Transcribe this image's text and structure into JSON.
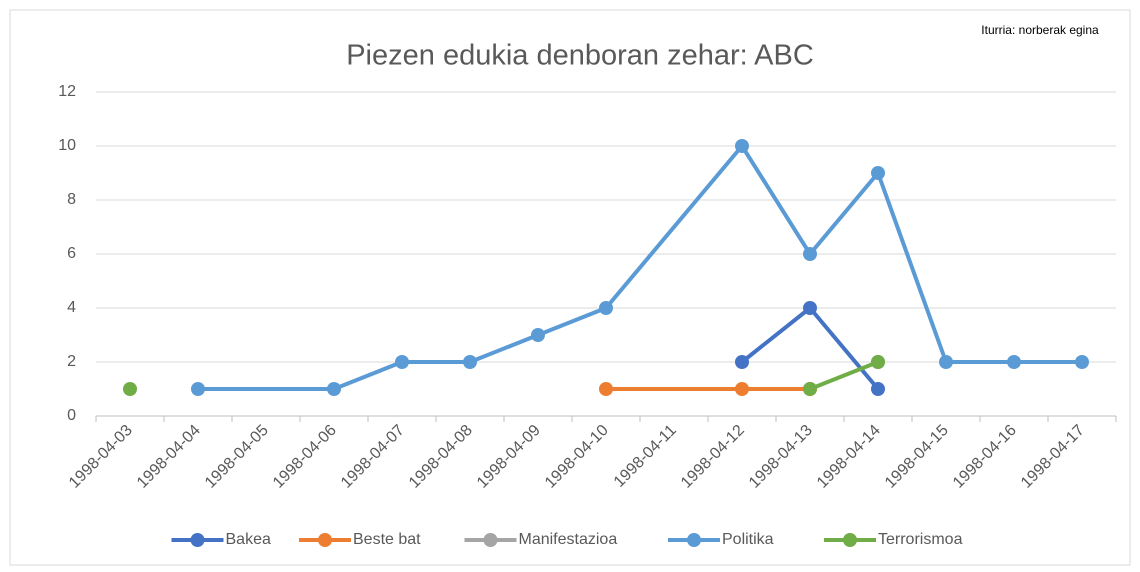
{
  "chart_data": {
    "type": "line",
    "title": "Piezen edukia denboran zehar: ABC",
    "note": "Iturria: norberak egina",
    "categories": [
      "1998-04-03",
      "1998-04-04",
      "1998-04-05",
      "1998-04-06",
      "1998-04-07",
      "1998-04-08",
      "1998-04-09",
      "1998-04-10",
      "1998-04-11",
      "1998-04-12",
      "1998-04-13",
      "1998-04-14",
      "1998-04-15",
      "1998-04-16",
      "1998-04-17"
    ],
    "series": [
      {
        "name": "Bakea",
        "color": "#4472c4",
        "values": [
          null,
          null,
          null,
          null,
          null,
          null,
          null,
          null,
          null,
          2,
          4,
          1,
          null,
          null,
          null
        ]
      },
      {
        "name": "Beste bat",
        "color": "#ed7d31",
        "span_gaps": true,
        "values": [
          null,
          null,
          null,
          null,
          null,
          null,
          null,
          1,
          null,
          1,
          1,
          null,
          null,
          null,
          null
        ]
      },
      {
        "name": "Manifestazioa",
        "color": "#a5a5a5",
        "values": [
          null,
          null,
          null,
          null,
          null,
          null,
          null,
          null,
          null,
          null,
          null,
          2,
          null,
          null,
          null
        ]
      },
      {
        "name": "Politika",
        "color": "#5b9bd5",
        "span_gaps": true,
        "values": [
          null,
          1,
          null,
          1,
          2,
          2,
          3,
          4,
          null,
          10,
          6,
          9,
          2,
          2,
          2
        ]
      },
      {
        "name": "Terrorismoa",
        "color": "#70ad47",
        "values": [
          1,
          null,
          null,
          null,
          null,
          null,
          null,
          null,
          null,
          null,
          1,
          2,
          null,
          null,
          null
        ]
      }
    ],
    "ylim": [
      0,
      12
    ],
    "yticks": [
      0,
      2,
      4,
      6,
      8,
      10,
      12
    ],
    "grid": true,
    "legend": "bottom"
  }
}
